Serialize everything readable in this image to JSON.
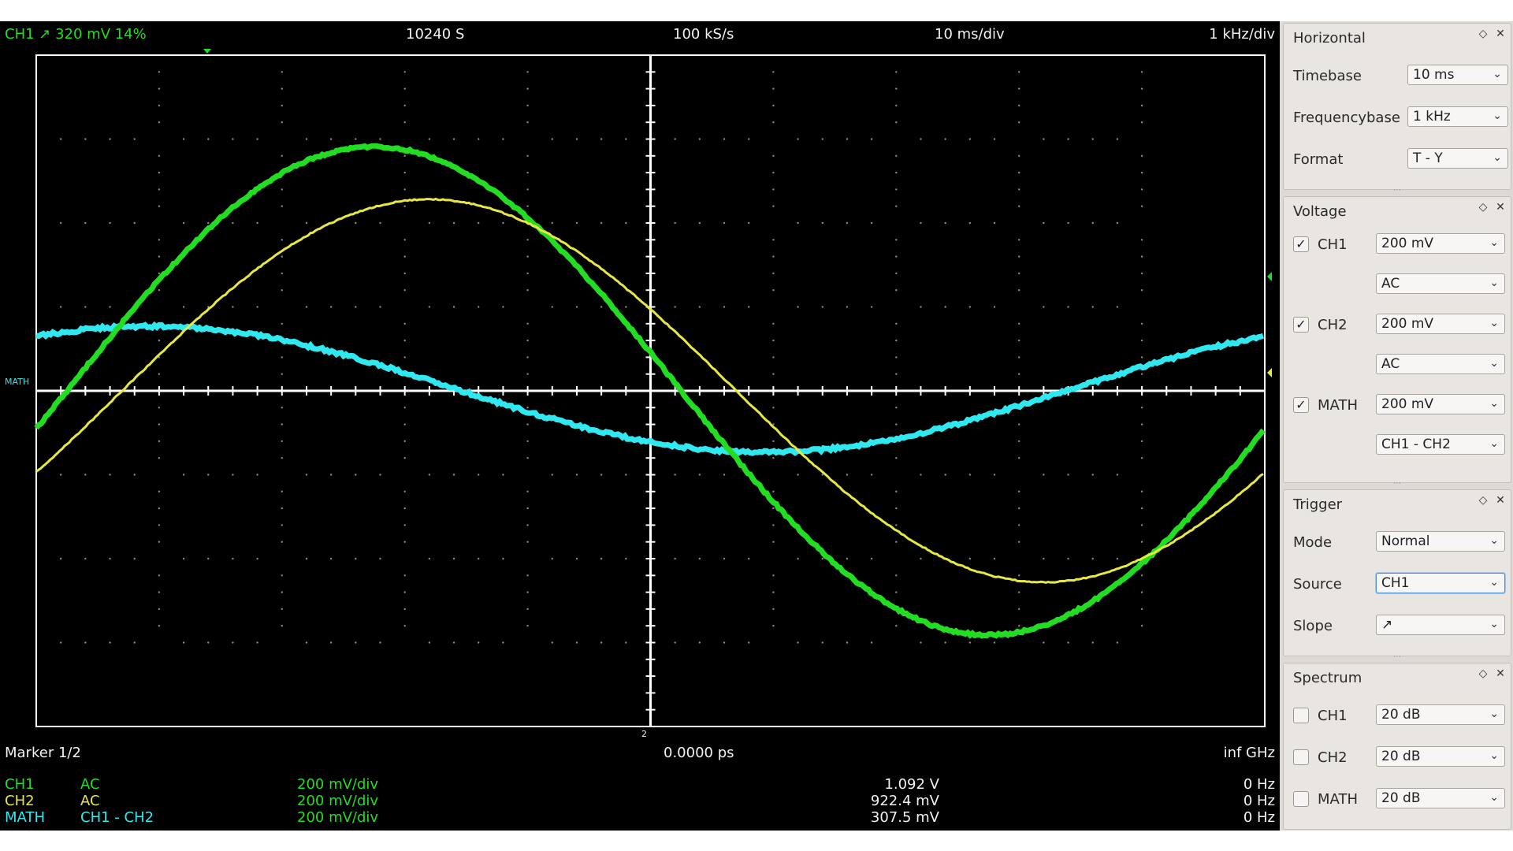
{
  "topbar": {
    "ch1_status": "CH1  ↗  320 mV  14%",
    "samples": "10240 S",
    "sample_rate": "100 kS/s",
    "time_div": "10 ms/div",
    "freq_div": "1 kHz/div"
  },
  "bottom": {
    "marker": "Marker 1/2",
    "marker_time": "0.0000 ps",
    "marker_freq": "inf GHz",
    "trigger_marker_label": "2",
    "left_marker_label": "MATH",
    "channels": [
      {
        "name": "CH1",
        "coupling": "AC",
        "scale": "200 mV/div",
        "value": "1.092 V",
        "freq": "0 Hz",
        "color": "#22dd22"
      },
      {
        "name": "CH2",
        "coupling": "AC",
        "scale": "200 mV/div",
        "value": "922.4 mV",
        "freq": "0 Hz",
        "color": "#e8e840"
      },
      {
        "name": "MATH",
        "coupling": "CH1 - CH2",
        "scale": "200 mV/div",
        "value": "307.5 mV",
        "freq": "0 Hz",
        "color": "#30e8f0"
      }
    ]
  },
  "traces": {
    "ch1_color": "#22dd22",
    "ch2_color": "#e8e840",
    "math_color": "#30e8f0"
  },
  "panels": {
    "horizontal": {
      "title": "Horizontal",
      "timebase_label": "Timebase",
      "timebase_value": "10 ms",
      "freqbase_label": "Frequencybase",
      "freqbase_value": "1 kHz",
      "format_label": "Format",
      "format_value": "T - Y"
    },
    "voltage": {
      "title": "Voltage",
      "ch1_label": "CH1",
      "ch1_value": "200 mV",
      "ch1_coupling": "AC",
      "ch2_label": "CH2",
      "ch2_value": "200 mV",
      "ch2_coupling": "AC",
      "math_label": "MATH",
      "math_value": "200 mV",
      "math_mode": "CH1 - CH2"
    },
    "trigger": {
      "title": "Trigger",
      "mode_label": "Mode",
      "mode_value": "Normal",
      "source_label": "Source",
      "source_value": "CH1",
      "slope_label": "Slope",
      "slope_value": "↗"
    },
    "spectrum": {
      "title": "Spectrum",
      "ch1_label": "CH1",
      "ch1_value": "20 dB",
      "ch2_label": "CH2",
      "ch2_value": "20 dB",
      "math_label": "MATH",
      "math_value": "20 dB"
    },
    "float_icon": "◇",
    "close_icon": "✕",
    "check_mark": "✓",
    "dropdown_icon": "⌄"
  }
}
